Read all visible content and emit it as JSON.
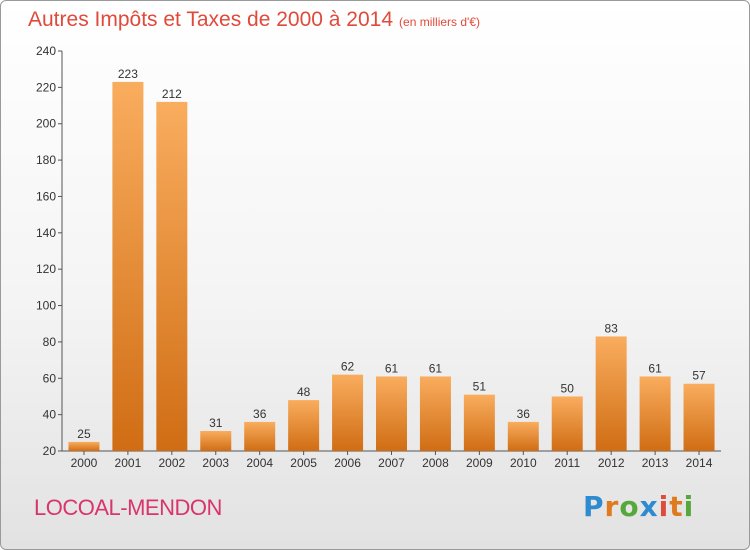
{
  "header": {
    "title": "Autres Impôts et Taxes de 2000 à 2014",
    "unit": "(en milliers d'€)"
  },
  "footer": {
    "place": "LOCOAL-MENDON",
    "brand": "Proxiti"
  },
  "colors": {
    "title": "#e04a3a",
    "place": "#d9356b",
    "bar_light": "#f7a450",
    "bar_dark": "#d4741c"
  },
  "chart_data": {
    "type": "bar",
    "categories": [
      "2000",
      "2001",
      "2002",
      "2003",
      "2004",
      "2005",
      "2006",
      "2007",
      "2008",
      "2009",
      "2010",
      "2011",
      "2012",
      "2013",
      "2014"
    ],
    "values": [
      25,
      223,
      212,
      31,
      36,
      48,
      62,
      61,
      61,
      51,
      36,
      50,
      83,
      61,
      57
    ],
    "ylim": [
      20,
      240
    ],
    "yticks": [
      20,
      40,
      60,
      80,
      100,
      120,
      140,
      160,
      180,
      200,
      220,
      240
    ],
    "grid": false,
    "legend": "none"
  }
}
